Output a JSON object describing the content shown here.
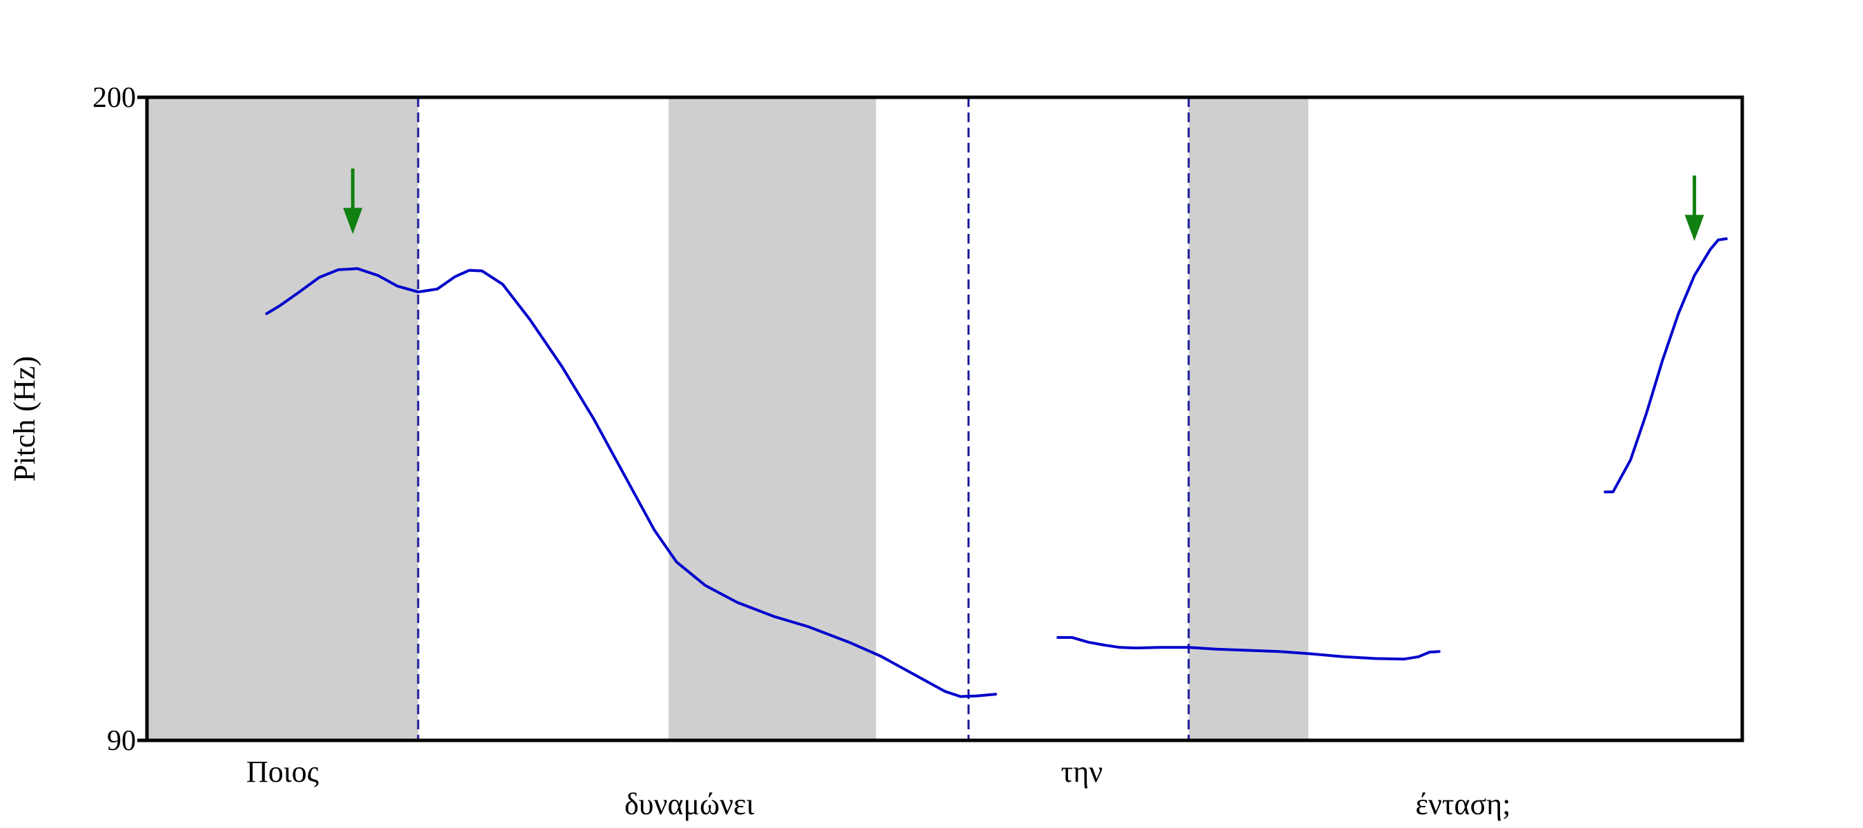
{
  "chart_data": {
    "type": "line",
    "title": "",
    "ylabel": "Pitch (Hz)",
    "xlabel": "",
    "ylim": [
      90,
      200
    ],
    "xlim": [
      0,
      1
    ],
    "y_ticks": [
      "200",
      "90"
    ],
    "grid": false,
    "words": [
      {
        "text": "Ποιος",
        "x": 0.085,
        "row": 1
      },
      {
        "text": "δυναμώνει",
        "x": 0.34,
        "row": 2
      },
      {
        "text": "την",
        "x": 0.586,
        "row": 1
      },
      {
        "text": "ένταση;",
        "x": 0.825,
        "row": 2
      }
    ],
    "boundaries": [
      0.17,
      0.515,
      0.653
    ],
    "shaded_regions": [
      [
        0.0,
        0.17
      ],
      [
        0.327,
        0.457
      ],
      [
        0.653,
        0.728
      ]
    ],
    "arrows": [
      0.129,
      0.97
    ],
    "series": [
      {
        "color": "#0000cc",
        "segments": [
          [
            [
              0.075,
              163
            ],
            [
              0.083,
              164.3
            ],
            [
              0.095,
              166.6
            ],
            [
              0.108,
              169.2
            ],
            [
              0.12,
              170.5
            ],
            [
              0.132,
              170.7
            ],
            [
              0.145,
              169.5
            ],
            [
              0.157,
              167.7
            ],
            [
              0.17,
              166.7
            ],
            [
              0.182,
              167.2
            ],
            [
              0.193,
              169.3
            ],
            [
              0.202,
              170.4
            ],
            [
              0.21,
              170.3
            ],
            [
              0.223,
              168
            ],
            [
              0.24,
              162
            ],
            [
              0.26,
              154
            ],
            [
              0.28,
              145
            ],
            [
              0.3,
              135
            ],
            [
              0.318,
              126
            ],
            [
              0.332,
              120.5
            ],
            [
              0.35,
              116.5
            ],
            [
              0.37,
              113.6
            ],
            [
              0.393,
              111.2
            ],
            [
              0.415,
              109.4
            ],
            [
              0.44,
              106.8
            ],
            [
              0.46,
              104.4
            ],
            [
              0.48,
              101.4
            ],
            [
              0.5,
              98.4
            ],
            [
              0.51,
              97.5
            ],
            [
              0.52,
              97.6
            ],
            [
              0.532,
              97.9
            ]
          ],
          [
            [
              0.571,
              107.6
            ],
            [
              0.58,
              107.6
            ],
            [
              0.59,
              106.8
            ],
            [
              0.6,
              106.3
            ],
            [
              0.61,
              105.9
            ],
            [
              0.62,
              105.8
            ],
            [
              0.635,
              105.9
            ],
            [
              0.653,
              105.9
            ],
            [
              0.67,
              105.6
            ],
            [
              0.69,
              105.4
            ],
            [
              0.71,
              105.2
            ],
            [
              0.73,
              104.8
            ],
            [
              0.75,
              104.3
            ],
            [
              0.77,
              104
            ],
            [
              0.788,
              103.9
            ],
            [
              0.797,
              104.3
            ],
            [
              0.804,
              105.1
            ],
            [
              0.81,
              105.2
            ]
          ],
          [
            [
              0.914,
              132.5
            ],
            [
              0.919,
              132.5
            ],
            [
              0.93,
              138
            ],
            [
              0.94,
              146
            ],
            [
              0.95,
              155
            ],
            [
              0.96,
              163
            ],
            [
              0.97,
              169.5
            ],
            [
              0.98,
              174
            ],
            [
              0.985,
              175.6
            ],
            [
              0.99,
              175.8
            ]
          ]
        ]
      }
    ]
  }
}
